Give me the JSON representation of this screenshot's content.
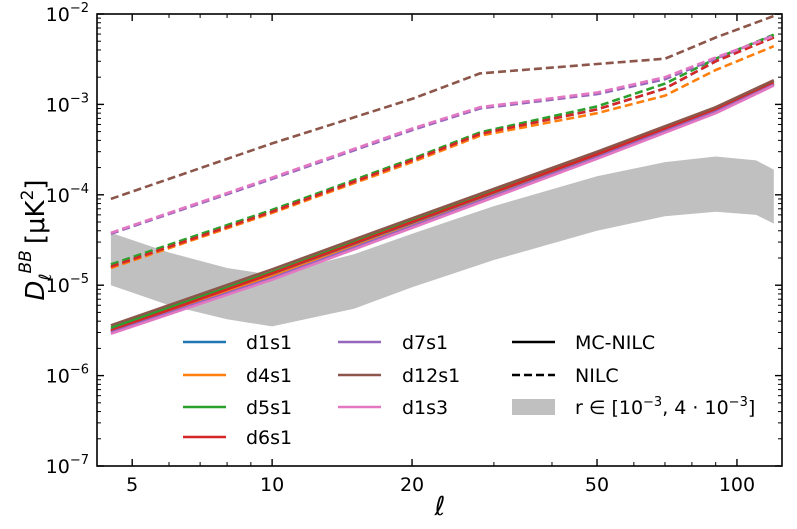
{
  "chart_data": {
    "type": "line",
    "xscale": "log",
    "yscale": "log",
    "xlim": [
      4.2,
      125
    ],
    "ylim": [
      1e-07,
      0.01
    ],
    "xlabel": "ℓ",
    "ylabel": "D_ℓ^BB [μK²]",
    "ylabel_main": "D",
    "ylabel_sub": "ℓ",
    "ylabel_sup": "BB",
    "ylabel_unit": "[μK",
    "ylabel_unit_sup": "2",
    "ylabel_unit_close": "]",
    "xticks": [
      {
        "value": 5,
        "label": "5"
      },
      {
        "value": 10,
        "label": "10"
      },
      {
        "value": 20,
        "label": "20"
      },
      {
        "value": 50,
        "label": "50"
      },
      {
        "value": 100,
        "label": "100"
      }
    ],
    "yticks": [
      {
        "exp": -7,
        "base": "10",
        "sup": "−7"
      },
      {
        "exp": -6,
        "base": "10",
        "sup": "−6"
      },
      {
        "exp": -5,
        "base": "10",
        "sup": "−5"
      },
      {
        "exp": -4,
        "base": "10",
        "sup": "−4"
      },
      {
        "exp": -3,
        "base": "10",
        "sup": "−3"
      },
      {
        "exp": -2,
        "base": "10",
        "sup": "−2"
      }
    ],
    "series": [
      {
        "name": "d1s1",
        "color": "#1f77b4",
        "mc_nilc": [
          [
            4.5,
            3.2e-06
          ],
          [
            10,
            1.3e-05
          ],
          [
            20,
            4.8e-05
          ],
          [
            50,
            0.00027
          ],
          [
            90,
            0.00085
          ],
          [
            120,
            0.0017
          ]
        ],
        "nilc": [
          [
            4.5,
            1.6e-05
          ],
          [
            10,
            6.5e-05
          ],
          [
            20,
            0.00024
          ],
          [
            28,
            0.00047
          ],
          [
            50,
            0.00088
          ],
          [
            70,
            0.0015
          ],
          [
            90,
            0.003
          ],
          [
            120,
            0.0056
          ]
        ]
      },
      {
        "name": "d4s1",
        "color": "#ff7f0e",
        "mc_nilc": [
          [
            4.5,
            3.1e-06
          ],
          [
            10,
            1.25e-05
          ],
          [
            20,
            4.6e-05
          ],
          [
            50,
            0.00026
          ],
          [
            90,
            0.00082
          ],
          [
            120,
            0.00165
          ]
        ],
        "nilc": [
          [
            4.5,
            1.55e-05
          ],
          [
            10,
            6.3e-05
          ],
          [
            20,
            0.00023
          ],
          [
            28,
            0.00045
          ],
          [
            50,
            0.0008
          ],
          [
            70,
            0.00125
          ],
          [
            90,
            0.0024
          ],
          [
            120,
            0.0044
          ]
        ]
      },
      {
        "name": "d5s1",
        "color": "#2ca02c",
        "mc_nilc": [
          [
            4.5,
            3.4e-06
          ],
          [
            10,
            1.4e-05
          ],
          [
            20,
            5.2e-05
          ],
          [
            50,
            0.00029
          ],
          [
            90,
            0.0009
          ],
          [
            120,
            0.0018
          ]
        ],
        "nilc": [
          [
            4.5,
            1.7e-05
          ],
          [
            10,
            6.8e-05
          ],
          [
            20,
            0.00025
          ],
          [
            28,
            0.00049
          ],
          [
            50,
            0.00095
          ],
          [
            70,
            0.0017
          ],
          [
            90,
            0.0032
          ],
          [
            120,
            0.0059
          ]
        ]
      },
      {
        "name": "d6s1",
        "color": "#d62728",
        "mc_nilc": [
          [
            4.5,
            3.15e-06
          ],
          [
            10,
            1.35e-05
          ],
          [
            20,
            5e-05
          ],
          [
            50,
            0.00028
          ],
          [
            90,
            0.00087
          ],
          [
            120,
            0.00172
          ]
        ],
        "nilc": [
          [
            4.5,
            1.6e-05
          ],
          [
            10,
            6.5e-05
          ],
          [
            20,
            0.00024
          ],
          [
            28,
            0.00047
          ],
          [
            50,
            0.00088
          ],
          [
            70,
            0.0015
          ],
          [
            90,
            0.003
          ],
          [
            120,
            0.0055
          ]
        ]
      },
      {
        "name": "d7s1",
        "color": "#9467bd",
        "mc_nilc": [
          [
            4.5,
            3e-06
          ],
          [
            10,
            1.2e-05
          ],
          [
            20,
            4.5e-05
          ],
          [
            50,
            0.00026
          ],
          [
            90,
            0.00083
          ],
          [
            120,
            0.00165
          ]
        ],
        "nilc": [
          [
            4.5,
            3.7e-05
          ],
          [
            10,
            0.00015
          ],
          [
            20,
            0.00052
          ],
          [
            28,
            0.0009
          ],
          [
            50,
            0.0013
          ],
          [
            70,
            0.0019
          ],
          [
            90,
            0.0032
          ],
          [
            120,
            0.0058
          ]
        ]
      },
      {
        "name": "d12s1",
        "color": "#8c564b",
        "mc_nilc": [
          [
            4.5,
            3.6e-06
          ],
          [
            10,
            1.5e-05
          ],
          [
            20,
            5.5e-05
          ],
          [
            50,
            0.0003
          ],
          [
            90,
            0.00093
          ],
          [
            120,
            0.00185
          ]
        ],
        "nilc": [
          [
            4.5,
            9e-05
          ],
          [
            10,
            0.00037
          ],
          [
            20,
            0.00115
          ],
          [
            28,
            0.0022
          ],
          [
            50,
            0.0028
          ],
          [
            70,
            0.0032
          ],
          [
            90,
            0.0055
          ],
          [
            120,
            0.0095
          ]
        ]
      },
      {
        "name": "d1s3",
        "color": "#e377c2",
        "mc_nilc": [
          [
            4.5,
            2.9e-06
          ],
          [
            10,
            1.15e-05
          ],
          [
            20,
            4.3e-05
          ],
          [
            50,
            0.00025
          ],
          [
            90,
            0.0008
          ],
          [
            120,
            0.00162
          ]
        ],
        "nilc": [
          [
            4.5,
            3.8e-05
          ],
          [
            10,
            0.000155
          ],
          [
            20,
            0.00054
          ],
          [
            28,
            0.00093
          ],
          [
            50,
            0.00135
          ],
          [
            70,
            0.002
          ],
          [
            90,
            0.0033
          ],
          [
            120,
            0.0057
          ]
        ]
      }
    ],
    "band": {
      "label_prefix": "r ∈ [10",
      "label_exp1": "−3",
      "label_mid": ", 4 · 10",
      "label_exp2": "−3",
      "label_suffix": "]",
      "color": "#c0c0c0",
      "upper": [
        [
          4.5,
          3.8e-05
        ],
        [
          6,
          2.3e-05
        ],
        [
          8,
          1.55e-05
        ],
        [
          10,
          1.3e-05
        ],
        [
          15,
          2.2e-05
        ],
        [
          20,
          3.7e-05
        ],
        [
          30,
          7.5e-05
        ],
        [
          50,
          0.00016
        ],
        [
          70,
          0.00023
        ],
        [
          90,
          0.000265
        ],
        [
          110,
          0.00024
        ],
        [
          120,
          0.00019
        ]
      ],
      "lower": [
        [
          4.5,
          1e-05
        ],
        [
          6,
          6e-06
        ],
        [
          8,
          4.2e-06
        ],
        [
          10,
          3.5e-06
        ],
        [
          15,
          5.5e-06
        ],
        [
          20,
          9.5e-06
        ],
        [
          30,
          1.9e-05
        ],
        [
          50,
          4e-05
        ],
        [
          70,
          5.8e-05
        ],
        [
          90,
          6.5e-05
        ],
        [
          110,
          6e-05
        ],
        [
          120,
          4.8e-05
        ]
      ]
    },
    "legend": {
      "placement": "bottom",
      "mc_nilc_label": "MC-NILC",
      "nilc_label": "NILC"
    }
  }
}
